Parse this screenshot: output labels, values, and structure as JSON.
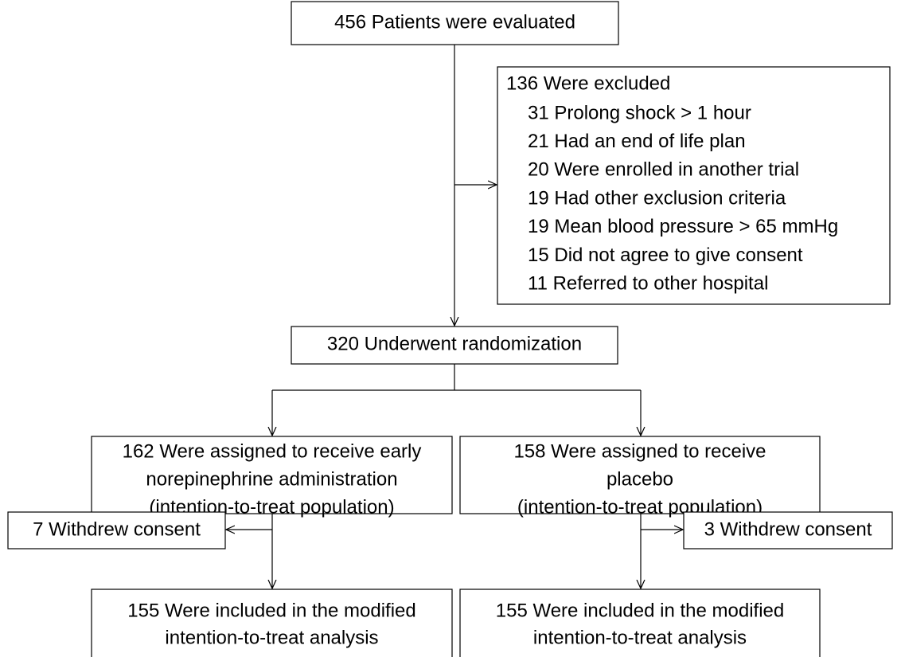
{
  "nodes": [
    {
      "lines": [
        "456 Patients were evaluated"
      ]
    },
    {
      "lines": [
        "320 Underwent randomization"
      ]
    },
    {
      "lines": [
        "162 Were assigned to receive early",
        "norepinephrine administration",
        "(intention-to-treat population)"
      ]
    },
    {
      "lines": [
        "158 Were assigned to receive",
        "placebo",
        "(intention-to-treat population)"
      ]
    },
    {
      "lines": [
        "7 Withdrew consent"
      ]
    },
    {
      "lines": [
        "3 Withdrew consent"
      ]
    },
    {
      "lines": [
        "155 Were included in the modified",
        "intention-to-treat analysis"
      ]
    },
    {
      "lines": [
        "155 Were included in the modified",
        "intention-to-treat analysis"
      ]
    }
  ],
  "exclusion": {
    "title": "136 Were excluded",
    "items": [
      "31 Prolong shock > 1 hour",
      "21 Had an end of life plan",
      "20 Were enrolled in another trial",
      "19 Had other exclusion criteria",
      "19 Mean blood pressure > 65 mmHg",
      "15 Did not agree to give consent",
      "11 Referred to other hospital"
    ]
  }
}
